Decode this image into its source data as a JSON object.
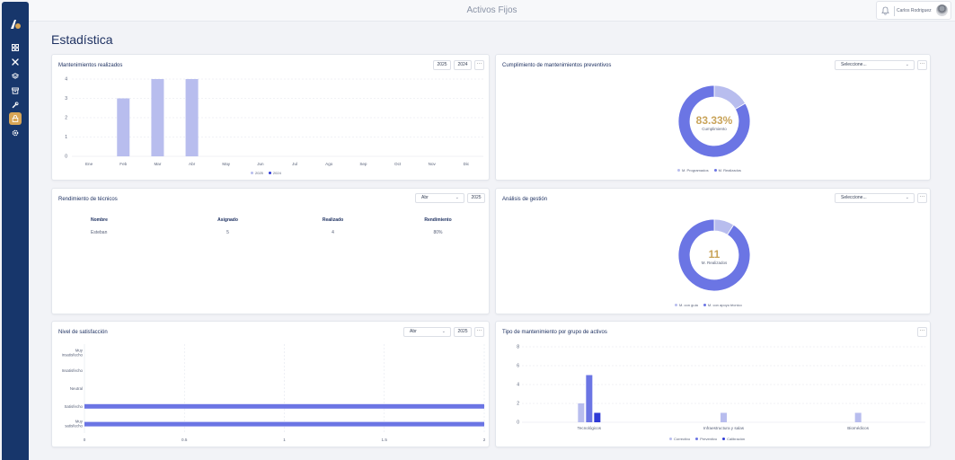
{
  "app": {
    "title": "Activos Fijos"
  },
  "user": {
    "name": "Carlos Rodriguez"
  },
  "page": {
    "title": "Estadística"
  },
  "sidebar": {
    "items": [
      {
        "icon": "grid-icon",
        "active": false
      },
      {
        "icon": "tools-icon",
        "active": false
      },
      {
        "icon": "layers-icon",
        "active": false
      },
      {
        "icon": "archive-icon",
        "active": false
      },
      {
        "icon": "wrench-icon",
        "active": false
      },
      {
        "icon": "lock-icon",
        "active": true
      },
      {
        "icon": "gear-icon",
        "active": false
      }
    ]
  },
  "cards": {
    "mantenimientos": {
      "title": "Mantenimientos realizados",
      "btn_2025": "2025",
      "btn_2024": "2024",
      "dots": "···"
    },
    "cumplimiento": {
      "title": "Cumplimiento de mantenimientos preventivos",
      "select_placeholder": "Seleccione...",
      "dots": "···"
    },
    "rendimiento": {
      "title": "Rendimiento de técnicos",
      "select_value": "Abr",
      "btn_year": "2025",
      "dots": "···"
    },
    "analisis": {
      "title": "Análisis de gestión",
      "select_placeholder": "Seleccione...",
      "dots": "···"
    },
    "satisfaccion": {
      "title": "Nivel de satisfacción",
      "select_value": "Abr",
      "btn_year": "2025",
      "dots": "···"
    },
    "tipo": {
      "title": "Tipo de mantenimiento por grupo de activos",
      "dots": "···"
    }
  },
  "table": {
    "headers": [
      "Nombre",
      "Asignado",
      "Realizado",
      "Rendimiento"
    ],
    "rows": [
      [
        "Esteban",
        "5",
        "4",
        "80%"
      ]
    ]
  },
  "colors": {
    "primary": "#6b75e4",
    "light": "#b8bdee",
    "dark": "#2f3ad6",
    "gold": "#c9a45a",
    "navy": "#17366b"
  },
  "chart_data": [
    {
      "id": "mantenimientos",
      "type": "bar",
      "title": "Mantenimientos realizados",
      "categories": [
        "Ene",
        "Feb",
        "Mar",
        "Abr",
        "May",
        "Jun",
        "Jul",
        "Ago",
        "Sep",
        "Oct",
        "Nov",
        "Dic"
      ],
      "series": [
        {
          "name": "2025",
          "values": [
            0,
            3,
            4,
            4,
            0,
            0,
            0,
            0,
            0,
            0,
            0,
            0
          ]
        },
        {
          "name": "2024",
          "values": [
            0,
            0,
            0,
            0,
            0,
            0,
            0,
            0,
            0,
            0,
            0,
            0
          ]
        }
      ],
      "ylim": [
        0,
        4
      ],
      "yticks": [
        0,
        1,
        2,
        3,
        4
      ]
    },
    {
      "id": "cumplimiento",
      "type": "pie",
      "title": "Cumplimiento de mantenimientos preventivos",
      "center_value": "83.33%",
      "center_label": "Cumplimiento",
      "labels": [
        "M. Programados",
        "M. Realizados"
      ],
      "values": [
        16.67,
        83.33
      ]
    },
    {
      "id": "analisis",
      "type": "pie",
      "title": "Análisis de gestión",
      "center_value": "11",
      "center_label": "M. Realizados",
      "labels": [
        "M. con guía",
        "M. con apoyo técnico"
      ],
      "values": [
        1,
        10
      ]
    },
    {
      "id": "satisfaccion",
      "type": "bar",
      "orientation": "horizontal",
      "title": "Nivel de satisfacción",
      "categories": [
        "Muy insatisfecho",
        "Insatisfecho",
        "Neutral",
        "Satisfecho",
        "Muy satisfecho"
      ],
      "values": [
        0,
        0,
        0,
        2,
        2
      ],
      "xlim": [
        0,
        2
      ],
      "xticks": [
        "0",
        "0.5",
        "1",
        "1.5",
        "2"
      ]
    },
    {
      "id": "tipo",
      "type": "bar",
      "title": "Tipo de mantenimiento por grupo de activos",
      "categories": [
        "Tecnológicos",
        "Infraestructura y salas",
        "Biomédicos"
      ],
      "series": [
        {
          "name": "Correctivo",
          "values": [
            2,
            1,
            1
          ]
        },
        {
          "name": "Preventivo",
          "values": [
            5,
            0,
            0
          ]
        },
        {
          "name": "Calibración",
          "values": [
            1,
            0,
            0
          ]
        }
      ],
      "ylim": [
        0,
        8
      ],
      "yticks": [
        0,
        2,
        4,
        6,
        8
      ]
    }
  ]
}
